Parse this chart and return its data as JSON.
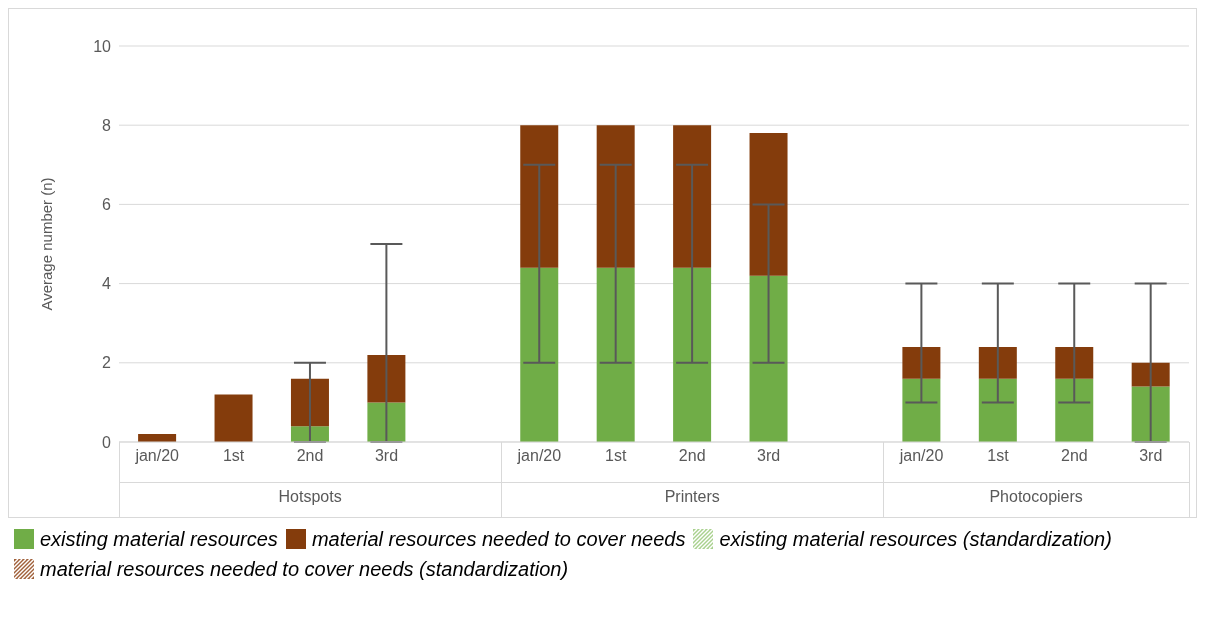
{
  "chart_data": {
    "type": "bar",
    "stacked": true,
    "ylabel": "Average number (n)",
    "categories": [
      "jan/20",
      "1st",
      "2nd",
      "3rd",
      null,
      "jan/20",
      "1st",
      "2nd",
      "3rd",
      null,
      "jan/20",
      "1st",
      "2nd",
      "3rd"
    ],
    "annotations": [
      "Hotspots",
      "Printers",
      "Photocopiers"
    ],
    "series": [
      {
        "name": "existing material resources",
        "color": "#70ad47",
        "values": [
          0,
          0,
          0.4,
          1.0,
          null,
          4.4,
          4.4,
          4.4,
          4.2,
          null,
          1.6,
          1.6,
          1.6,
          1.4
        ],
        "errors": [
          null,
          null,
          [
            0,
            2
          ],
          [
            0,
            5
          ],
          null,
          [
            2,
            7
          ],
          [
            2,
            7
          ],
          [
            2,
            7
          ],
          [
            2,
            6
          ],
          null,
          [
            1,
            4
          ],
          [
            1,
            4
          ],
          [
            1,
            4
          ],
          [
            0,
            4
          ]
        ]
      },
      {
        "name": "material resources needed to cover needs",
        "color": "#843c0c",
        "values": [
          0.2,
          1.2,
          1.2,
          1.2,
          null,
          3.6,
          3.6,
          3.6,
          3.6,
          null,
          0.8,
          0.8,
          0.8,
          0.6
        ]
      },
      {
        "name": "existing material resources (standardization)",
        "color": "#a9d18e",
        "values": [
          null,
          null,
          null,
          null,
          null,
          null,
          null,
          null,
          null,
          null,
          null,
          null,
          null,
          null
        ]
      },
      {
        "name": "material resources needed to cover needs (standardization)",
        "color": "#a0603a",
        "values": [
          null,
          null,
          null,
          null,
          null,
          null,
          null,
          null,
          null,
          null,
          null,
          null,
          null,
          null
        ]
      }
    ],
    "ylim": [
      0,
      10
    ],
    "yticks": [
      0,
      2,
      4,
      6,
      8,
      10
    ],
    "grid": "y",
    "legend": "bottom"
  }
}
